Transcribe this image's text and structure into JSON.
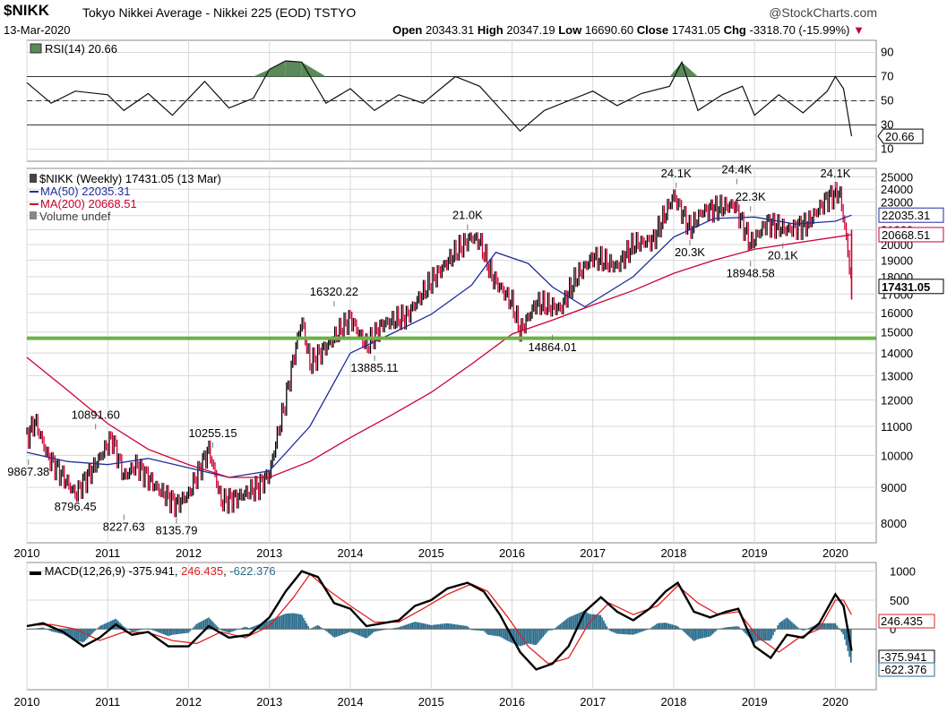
{
  "header": {
    "symbol": "$NIKK",
    "name": "Tokyo Nikkei Average - Nikkei 225 (EOD) TSTYO",
    "brand": "@StockCharts.com",
    "date": "13-Mar-2020",
    "open_label": "Open",
    "open": "20343.31",
    "high_label": "High",
    "high": "20347.19",
    "low_label": "Low",
    "low": "16690.60",
    "close_label": "Close",
    "close": "17431.05",
    "chg_label": "Chg",
    "chg": "-3318.70 (-15.99%)",
    "chg_arrow": "▼"
  },
  "colors": {
    "price_up": "#000000",
    "price_down": "#cc0033",
    "ma50": "#1f2f9a",
    "ma200": "#cc0033",
    "support": "#6ab344",
    "rsi_fill": "#5a8a5a",
    "macd_hist": "#2b6c8c",
    "macd_signal": "#e02020"
  },
  "chart_data": [
    {
      "type": "line",
      "title": "RSI(14) 20.66",
      "yticks": [
        10,
        30,
        50,
        70,
        90
      ],
      "ylim": [
        0,
        100
      ],
      "overbought": 70,
      "oversold": 30,
      "last_label": "20.66",
      "x": [
        2010.0,
        2010.3,
        2010.6,
        2011.0,
        2011.2,
        2011.5,
        2011.8,
        2012.2,
        2012.5,
        2012.8,
        2013.0,
        2013.2,
        2013.4,
        2013.7,
        2014.0,
        2014.3,
        2014.6,
        2014.9,
        2015.3,
        2015.6,
        2015.9,
        2016.1,
        2016.4,
        2016.7,
        2017.0,
        2017.3,
        2017.6,
        2017.95,
        2018.1,
        2018.3,
        2018.6,
        2018.85,
        2019.0,
        2019.3,
        2019.6,
        2019.9,
        2020.0,
        2020.1,
        2020.2
      ],
      "values": [
        65,
        48,
        58,
        55,
        42,
        56,
        38,
        66,
        44,
        52,
        76,
        83,
        82,
        48,
        60,
        42,
        55,
        48,
        70,
        62,
        40,
        25,
        42,
        50,
        58,
        46,
        56,
        62,
        82,
        42,
        55,
        62,
        38,
        55,
        40,
        58,
        70,
        60,
        20.66
      ]
    },
    {
      "type": "line",
      "title": "$NIKK (Weekly) 17431.05 (13 Mar)",
      "legend": [
        "MA(50) 22035.31",
        "MA(200) 20668.51",
        "Volume undef"
      ],
      "xlabel": "",
      "ylabel": "",
      "x_ticks": [
        "2010",
        "2011",
        "2012",
        "2013",
        "2014",
        "2015",
        "2016",
        "2017",
        "2018",
        "2019",
        "2020"
      ],
      "y_ticks": [
        8000,
        9000,
        10000,
        11000,
        12000,
        13000,
        14000,
        15000,
        16000,
        17000,
        18000,
        19000,
        20000,
        21000,
        22000,
        23000,
        24000,
        25000
      ],
      "ylim": [
        7500,
        25700
      ],
      "log_scale": true,
      "support_level": 14700,
      "series": [
        {
          "name": "$NIKK",
          "x": [
            2010.0,
            2010.1,
            2010.25,
            2010.45,
            2010.6,
            2010.85,
            2011.05,
            2011.2,
            2011.35,
            2011.6,
            2011.85,
            2012.0,
            2012.25,
            2012.4,
            2012.6,
            2012.85,
            2013.0,
            2013.2,
            2013.4,
            2013.5,
            2013.75,
            2014.0,
            2014.2,
            2014.4,
            2014.7,
            2014.95,
            2015.3,
            2015.5,
            2015.6,
            2015.75,
            2016.0,
            2016.1,
            2016.3,
            2016.6,
            2016.8,
            2017.0,
            2017.3,
            2017.5,
            2017.75,
            2018.0,
            2018.2,
            2018.35,
            2018.5,
            2018.75,
            2018.95,
            2019.15,
            2019.4,
            2019.65,
            2019.9,
            2020.05,
            2020.12,
            2020.2
          ],
          "values": [
            10600,
            11200,
            10000,
            9300,
            8796,
            9700,
            10600,
            9300,
            9700,
            9000,
            8500,
            8800,
            10200,
            8600,
            8700,
            9000,
            9400,
            12000,
            15600,
            13500,
            14500,
            15700,
            14300,
            15400,
            15800,
            17400,
            19500,
            20500,
            20200,
            18000,
            16500,
            15000,
            16500,
            16200,
            18000,
            19200,
            18600,
            20000,
            20300,
            23500,
            21000,
            22300,
            22500,
            22800,
            20000,
            21500,
            21000,
            21400,
            23300,
            23800,
            21000,
            17431.05
          ]
        },
        {
          "name": "MA(50) 22035.31",
          "x": [
            2010.0,
            2010.5,
            2011.0,
            2011.5,
            2012.0,
            2012.5,
            2013.0,
            2013.5,
            2014.0,
            2014.5,
            2015.0,
            2015.5,
            2015.8,
            2016.2,
            2016.5,
            2016.9,
            2017.5,
            2018.0,
            2018.5,
            2019.0,
            2019.5,
            2020.0,
            2020.2
          ],
          "values": [
            10100,
            9800,
            9700,
            9900,
            9600,
            9300,
            9500,
            11000,
            14000,
            14900,
            15900,
            17500,
            19500,
            18800,
            17400,
            16300,
            18000,
            20500,
            21800,
            21900,
            21400,
            21600,
            22035
          ]
        },
        {
          "name": "MA(200) 20668.51",
          "x": [
            2010.0,
            2010.5,
            2011.0,
            2011.5,
            2012.0,
            2012.5,
            2013.0,
            2013.5,
            2014.0,
            2014.5,
            2015.0,
            2015.5,
            2016.0,
            2016.5,
            2017.0,
            2017.5,
            2018.0,
            2018.5,
            2019.0,
            2019.5,
            2020.0,
            2020.2
          ],
          "values": [
            13800,
            12400,
            11100,
            10200,
            9700,
            9300,
            9300,
            9800,
            10600,
            11400,
            12300,
            13500,
            14900,
            15600,
            16400,
            17200,
            18200,
            19000,
            19700,
            20100,
            20500,
            20668
          ]
        }
      ],
      "annotations": [
        {
          "x": 2010.02,
          "value": 9867.38,
          "label": "9867.38"
        },
        {
          "x": 2010.6,
          "value": 8796.45,
          "label": "8796.45"
        },
        {
          "x": 2010.85,
          "value": 10891.6,
          "label": "10891.60"
        },
        {
          "x": 2011.2,
          "value": 8227.63,
          "label": "8227.63"
        },
        {
          "x": 2011.85,
          "value": 8135.79,
          "label": "8135.79"
        },
        {
          "x": 2012.3,
          "value": 10255.15,
          "label": "10255.15"
        },
        {
          "x": 2013.8,
          "value": 16320.22,
          "label": "16320.22"
        },
        {
          "x": 2014.3,
          "value": 13885.11,
          "label": "13885.11"
        },
        {
          "x": 2015.45,
          "value": 21000,
          "label": "21.0K"
        },
        {
          "x": 2016.5,
          "value": 14864.01,
          "label": "14864.01"
        },
        {
          "x": 2018.03,
          "value": 24100,
          "label": "24.1K"
        },
        {
          "x": 2018.2,
          "value": 20300,
          "label": "20.3K"
        },
        {
          "x": 2018.78,
          "value": 24400,
          "label": "24.4K"
        },
        {
          "x": 2018.95,
          "value": 22300,
          "label": "22.3K"
        },
        {
          "x": 2018.95,
          "value": 18948.58,
          "label": "18948.58"
        },
        {
          "x": 2019.35,
          "value": 20100,
          "label": "20.1K"
        },
        {
          "x": 2020.0,
          "value": 24100,
          "label": "24.1K"
        }
      ],
      "last_labels": [
        "22035.31",
        "20668.51",
        "17431.05"
      ]
    },
    {
      "type": "line",
      "title": "MACD(12,26,9) -375.941, 246.435, -622.376",
      "legend": [
        "MACD(12,26,9) -375.941",
        "246.435",
        "-622.376"
      ],
      "yticks": [
        0,
        500,
        1000
      ],
      "ylim": [
        -1050,
        1150
      ],
      "last_labels": [
        "246.435",
        "-375.941",
        "-622.376"
      ],
      "x_ticks": [
        "2010",
        "2011",
        "2012",
        "2013",
        "2014",
        "2015",
        "2016",
        "2017",
        "2018",
        "2019",
        "2020"
      ],
      "series": [
        {
          "name": "MACD",
          "x": [
            2010.0,
            2010.2,
            2010.45,
            2010.7,
            2010.9,
            2011.1,
            2011.3,
            2011.5,
            2011.75,
            2012.0,
            2012.25,
            2012.5,
            2012.75,
            2013.0,
            2013.2,
            2013.4,
            2013.6,
            2013.8,
            2014.0,
            2014.2,
            2014.4,
            2014.6,
            2014.8,
            2015.0,
            2015.2,
            2015.45,
            2015.65,
            2015.85,
            2016.1,
            2016.3,
            2016.5,
            2016.7,
            2016.9,
            2017.1,
            2017.3,
            2017.5,
            2017.7,
            2017.9,
            2018.05,
            2018.25,
            2018.45,
            2018.65,
            2018.8,
            2019.0,
            2019.2,
            2019.4,
            2019.6,
            2019.8,
            2020.0,
            2020.1,
            2020.2
          ],
          "values": [
            50,
            100,
            -50,
            -300,
            -150,
            80,
            -100,
            -50,
            -300,
            -300,
            50,
            -150,
            -100,
            200,
            650,
            1000,
            900,
            450,
            350,
            50,
            100,
            150,
            400,
            500,
            700,
            800,
            650,
            250,
            -400,
            -700,
            -600,
            -300,
            300,
            550,
            300,
            150,
            350,
            650,
            800,
            300,
            200,
            300,
            350,
            -300,
            -500,
            -100,
            -150,
            100,
            600,
            400,
            -375.941
          ]
        },
        {
          "name": "Signal",
          "x": [
            2010.0,
            2010.3,
            2010.6,
            2010.9,
            2011.2,
            2011.5,
            2011.8,
            2012.1,
            2012.4,
            2012.7,
            2013.0,
            2013.3,
            2013.5,
            2013.75,
            2014.0,
            2014.3,
            2014.6,
            2014.9,
            2015.2,
            2015.5,
            2015.7,
            2015.95,
            2016.2,
            2016.45,
            2016.7,
            2016.95,
            2017.2,
            2017.5,
            2017.8,
            2018.05,
            2018.3,
            2018.55,
            2018.8,
            2019.05,
            2019.3,
            2019.55,
            2019.8,
            2020.0,
            2020.1,
            2020.2
          ],
          "values": [
            60,
            80,
            0,
            -200,
            -50,
            -60,
            -200,
            -250,
            -50,
            -150,
            50,
            550,
            950,
            650,
            400,
            120,
            120,
            350,
            600,
            780,
            650,
            200,
            -300,
            -600,
            -500,
            100,
            450,
            250,
            400,
            750,
            450,
            250,
            300,
            -150,
            -400,
            -150,
            0,
            500,
            500,
            246.435
          ]
        }
      ],
      "histogram": {
        "x": [
          2010.0,
          2010.5,
          2011.0,
          2011.5,
          2012.0,
          2012.5,
          2013.0,
          2013.3,
          2013.6,
          2013.9,
          2014.2,
          2014.6,
          2015.0,
          2015.4,
          2015.8,
          2016.0,
          2016.3,
          2016.6,
          2016.9,
          2017.2,
          2017.6,
          2018.0,
          2018.4,
          2018.8,
          2019.0,
          2019.3,
          2019.6,
          2020.0,
          2020.2
        ],
        "values": [
          -30,
          -80,
          60,
          -60,
          -80,
          60,
          120,
          150,
          60,
          -100,
          -60,
          50,
          80,
          40,
          -120,
          -200,
          -60,
          100,
          180,
          40,
          60,
          80,
          -80,
          40,
          -150,
          -80,
          60,
          80,
          -622.376
        ]
      }
    }
  ]
}
